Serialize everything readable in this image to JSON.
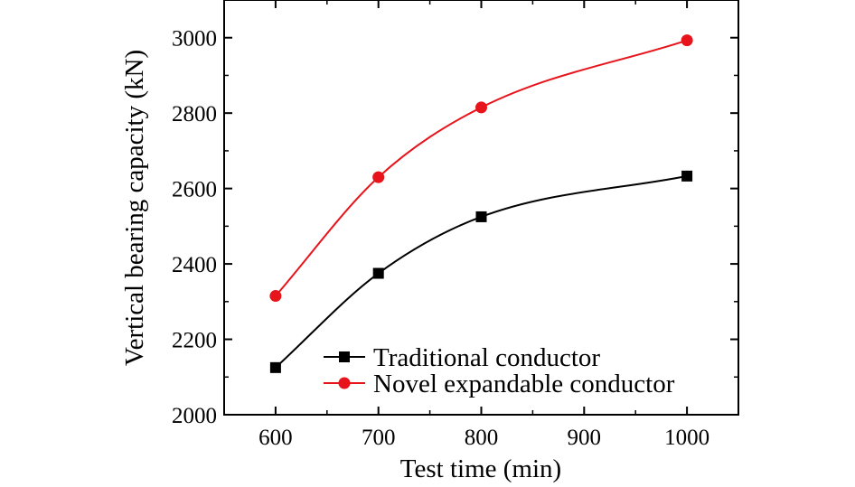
{
  "chart_data": {
    "type": "line",
    "title": "",
    "xlabel": "Test time (min)",
    "ylabel": "Vertical bearing capacity (kN)",
    "xlim": [
      550,
      1050
    ],
    "ylim": [
      2000,
      3100
    ],
    "xticks": [
      600,
      700,
      800,
      900,
      1000
    ],
    "yticks": [
      2000,
      2200,
      2400,
      2600,
      2800,
      3000
    ],
    "grid": false,
    "legend_position": "bottom-right",
    "series": [
      {
        "name": "Traditional conductor",
        "color": "#000000",
        "marker": "square",
        "x": [
          600,
          700,
          800,
          1000
        ],
        "y": [
          2125,
          2375,
          2525,
          2633
        ]
      },
      {
        "name": "Novel expandable conductor",
        "color": "#e8141c",
        "marker": "circle",
        "x": [
          600,
          700,
          800,
          1000
        ],
        "y": [
          2315,
          2630,
          2815,
          2993
        ]
      }
    ]
  }
}
